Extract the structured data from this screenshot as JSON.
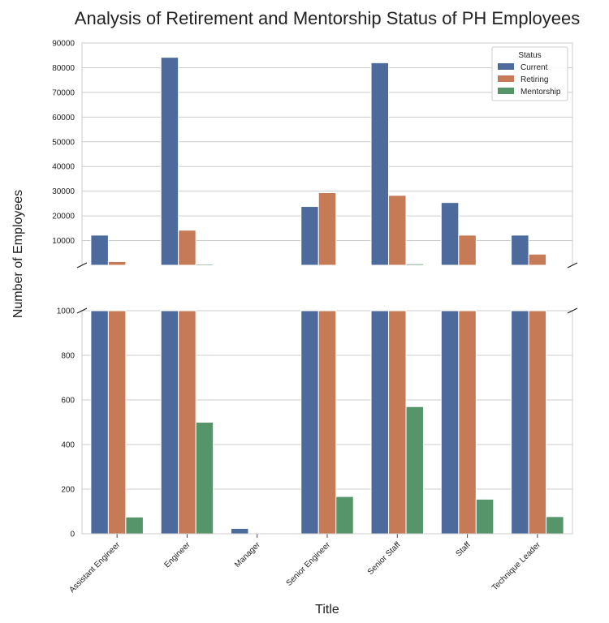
{
  "chart_data": {
    "type": "bar",
    "title": "Analysis of Retirement and Mentorship Status of PH Employees",
    "xlabel": "Title",
    "ylabel": "Number of Employees",
    "categories": [
      "Assistant Engineer",
      "Engineer",
      "Manager",
      "Senior Engineer",
      "Senior Staff",
      "Staff",
      "Technique Leader"
    ],
    "series": [
      {
        "name": "Current",
        "color": "#4c6a9c",
        "values": [
          12200,
          84200,
          24,
          23800,
          82000,
          25400,
          12200
        ]
      },
      {
        "name": "Retiring",
        "color": "#c67b56",
        "values": [
          1500,
          14200,
          2,
          29400,
          28300,
          12200,
          4500
        ]
      },
      {
        "name": "Mentorship",
        "color": "#56956a",
        "values": [
          75,
          500,
          0,
          167,
          570,
          155,
          77
        ]
      }
    ],
    "axes": {
      "upper": {
        "ylim": [
          0,
          90000
        ],
        "ticks": [
          10000,
          20000,
          30000,
          40000,
          50000,
          60000,
          70000,
          80000,
          90000
        ]
      },
      "lower": {
        "ylim": [
          0,
          1000
        ],
        "ticks": [
          0,
          200,
          400,
          600,
          800,
          1000
        ]
      }
    },
    "broken_axis": true,
    "grid": true,
    "legend": {
      "title": "Status",
      "placement": "top-right"
    }
  }
}
